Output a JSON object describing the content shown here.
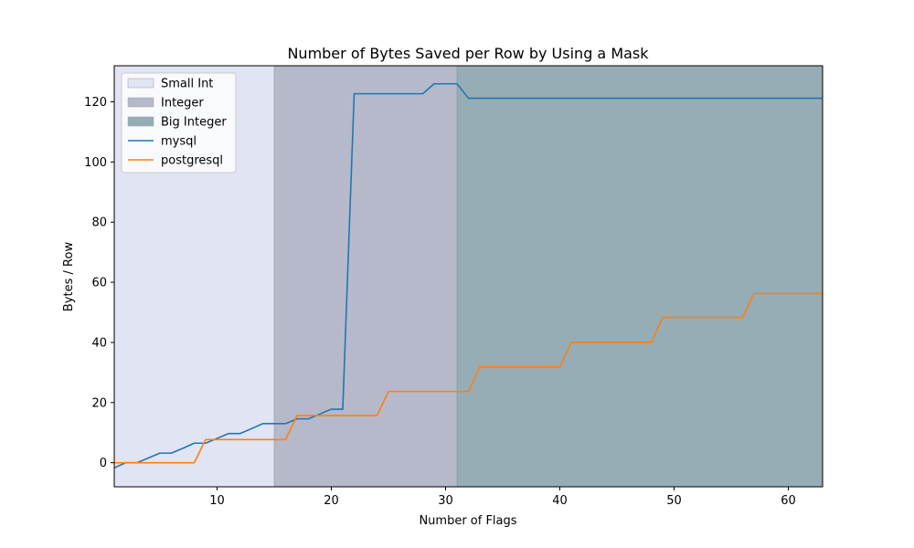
{
  "chart_data": {
    "type": "line",
    "title": "Number of Bytes Saved per Row by Using a Mask",
    "xlabel": "Number of Flags",
    "ylabel": "Bytes / Row",
    "xlim": [
      1,
      63
    ],
    "ylim": [
      -8,
      132
    ],
    "xticks": [
      10,
      20,
      30,
      40,
      50,
      60
    ],
    "yticks": [
      0,
      20,
      40,
      60,
      80,
      100,
      120
    ],
    "grid": false,
    "legend_position": "top-left",
    "regions": [
      {
        "name": "Small Int",
        "x_start": 1,
        "x_end": 15,
        "color": "#e1e4f2"
      },
      {
        "name": "Integer",
        "x_start": 15,
        "x_end": 31,
        "color": "#b6b9c9"
      },
      {
        "name": "Big Integer",
        "x_start": 31,
        "x_end": 63,
        "color": "#96adb6"
      }
    ],
    "series": [
      {
        "name": "mysql",
        "color": "#1f77b4",
        "x": [
          1,
          2,
          3,
          4,
          5,
          6,
          7,
          8,
          9,
          10,
          11,
          12,
          13,
          14,
          15,
          16,
          17,
          18,
          19,
          20,
          21,
          22,
          23,
          24,
          25,
          26,
          27,
          28,
          29,
          30,
          31,
          32,
          33,
          34,
          35,
          36,
          37,
          38,
          39,
          40,
          41,
          42,
          43,
          44,
          45,
          46,
          47,
          48,
          49,
          50,
          51,
          52,
          53,
          54,
          55,
          56,
          57,
          58,
          59,
          60,
          61,
          62,
          63
        ],
        "y": [
          -1.7,
          0,
          0,
          1.6,
          3.2,
          3.2,
          4.8,
          6.5,
          6.5,
          8.1,
          9.7,
          9.7,
          11.3,
          13,
          13,
          13,
          14.6,
          14.6,
          16.2,
          17.8,
          17.8,
          122.7,
          122.7,
          122.7,
          122.7,
          122.7,
          122.7,
          122.7,
          126,
          126,
          126,
          121.2,
          121.2,
          121.2,
          121.2,
          121.2,
          121.2,
          121.2,
          121.2,
          121.2,
          121.2,
          121.2,
          121.2,
          121.2,
          121.2,
          121.2,
          121.2,
          121.2,
          121.2,
          121.2,
          121.2,
          121.2,
          121.2,
          121.2,
          121.2,
          121.2,
          121.2,
          121.2,
          121.2,
          121.2,
          121.2,
          121.2,
          121.2
        ]
      },
      {
        "name": "postgresql",
        "color": "#ff7f0e",
        "x": [
          1,
          2,
          3,
          4,
          5,
          6,
          7,
          8,
          9,
          10,
          11,
          12,
          13,
          14,
          15,
          16,
          17,
          18,
          19,
          20,
          21,
          22,
          23,
          24,
          25,
          26,
          27,
          28,
          29,
          30,
          31,
          32,
          33,
          34,
          35,
          36,
          37,
          38,
          39,
          40,
          41,
          42,
          43,
          44,
          45,
          46,
          47,
          48,
          49,
          50,
          51,
          52,
          53,
          54,
          55,
          56,
          57,
          58,
          59,
          60,
          61,
          62,
          63
        ],
        "y": [
          0,
          0,
          0,
          0,
          0,
          0,
          0,
          0,
          7.7,
          7.7,
          7.7,
          7.7,
          7.7,
          7.7,
          7.7,
          7.7,
          15.7,
          15.7,
          15.7,
          15.7,
          15.7,
          15.7,
          15.7,
          15.7,
          23.7,
          23.7,
          23.7,
          23.7,
          23.7,
          23.7,
          23.7,
          23.7,
          31.8,
          31.8,
          31.8,
          31.8,
          31.8,
          31.8,
          31.8,
          31.8,
          40,
          40,
          40,
          40,
          40,
          40,
          40,
          40,
          48.3,
          48.3,
          48.3,
          48.3,
          48.3,
          48.3,
          48.3,
          48.3,
          56.3,
          56.3,
          56.3,
          56.3,
          56.3,
          56.3,
          56.3
        ]
      }
    ]
  }
}
